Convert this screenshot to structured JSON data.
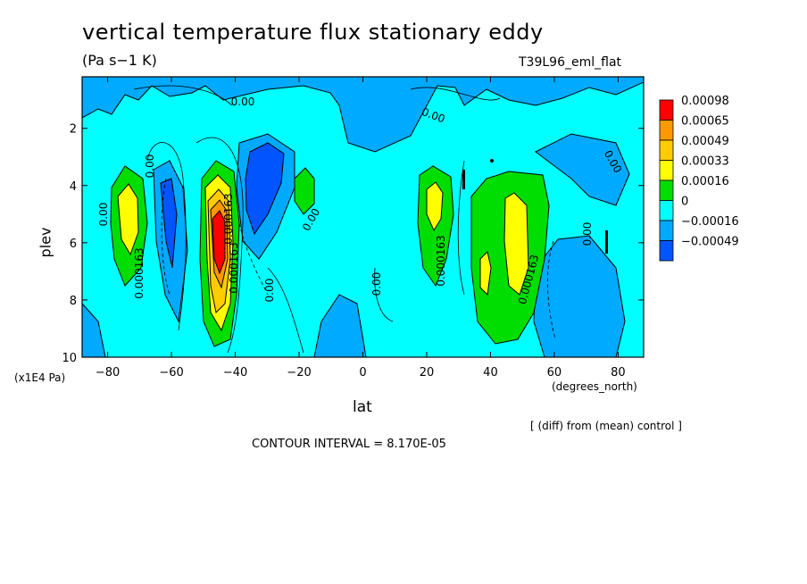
{
  "chart_data": {
    "type": "heatmap",
    "title": "vertical temperature flux stationary eddy",
    "units": "(Pa s−1 K)",
    "run_label": "T39L96_eml_flat",
    "xlabel": "lat",
    "xunit": "(degrees_north)",
    "ylabel": "plev",
    "yunit": "(x1E4 Pa)",
    "xlim": [
      -88,
      88
    ],
    "ylim": [
      10,
      0.2
    ],
    "x_ticks": [
      -80,
      -60,
      -40,
      -20,
      0,
      20,
      40,
      60,
      80
    ],
    "x_tick_labels": [
      "−80",
      "−60",
      "−40",
      "−20",
      "0",
      "20",
      "40",
      "60",
      "80"
    ],
    "y_ticks": [
      2,
      4,
      6,
      8,
      10
    ],
    "y_tick_labels": [
      "2",
      "4",
      "6",
      "8",
      "10"
    ],
    "legend_levels": [
      "0.00098",
      "0.00065",
      "0.00049",
      "0.00033",
      "0.00016",
      "0",
      "−0.00016",
      "−0.00049"
    ],
    "legend_colors": [
      "#ff0000",
      "#ff9900",
      "#ffcc00",
      "#ffff00",
      "#00dd00",
      "#00ffff",
      "#00aaff",
      "#0055ff"
    ],
    "background_color": "#00aaff",
    "contour_labels": [
      "0.00",
      "0.00",
      "0.00",
      "0.000163",
      "0.000163",
      "0.000163",
      "0.000163",
      "0.000163",
      "0.00",
      "0.00",
      "0.00",
      "0.00",
      "0.00",
      "0.00"
    ],
    "annotation_diff": "[ (diff) from (mean) control ]",
    "contour_interval": "CONTOUR INTERVAL = 8.170E-05",
    "regions": [
      {
        "level": 5,
        "x": [
          -80,
          -20,
          25,
          55
        ],
        "p": [
          1.2,
          0.8,
          1.0,
          1.5
        ]
      },
      {
        "level": 5,
        "x": [
          -88,
          88
        ],
        "p": [
          3,
          10
        ]
      },
      {
        "level": 4,
        "x": [
          -77,
          -52,
          -34,
          21,
          48
        ],
        "p": [
          4.8,
          4.8,
          4.8,
          5.2,
          6.0
        ]
      },
      {
        "level": 3,
        "x": [
          -75,
          -45,
          22,
          48
        ],
        "p": [
          5.2,
          6.0,
          5.5,
          6.5
        ]
      },
      {
        "level": 2,
        "x": [
          -45
        ],
        "p": [
          6.0
        ]
      },
      {
        "level": 1,
        "x": [
          -45
        ],
        "p": [
          6.0
        ]
      }
    ]
  }
}
